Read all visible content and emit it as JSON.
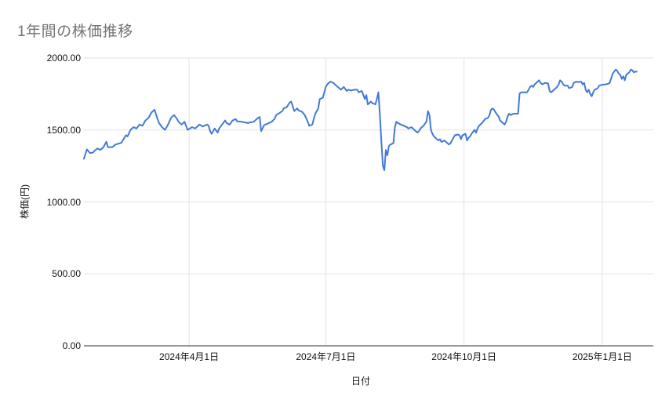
{
  "colors": {
    "line": "#4379d8",
    "gridline": "#e3e3e3",
    "axis_line": "#333333",
    "title_text": "#757575",
    "tick_text": "#111111",
    "background": "#ffffff"
  },
  "chart_data": {
    "type": "line",
    "title": "1年間の株価推移",
    "xlabel": "日付",
    "ylabel": "株価(円)",
    "ylim": [
      0,
      2000
    ],
    "grid": "on",
    "legend": "none",
    "y_ticks": [
      {
        "label": "0.00",
        "value": 0
      },
      {
        "label": "500.00",
        "value": 500
      },
      {
        "label": "1000.00",
        "value": 1000
      },
      {
        "label": "1500.00",
        "value": 1500
      },
      {
        "label": "2000.00",
        "value": 2000
      }
    ],
    "x_ticks": [
      {
        "label": "2024年4月1日",
        "day": 70
      },
      {
        "label": "2024年7月1日",
        "day": 161
      },
      {
        "label": "2024年10月1日",
        "day": 253
      },
      {
        "label": "2025年1月1日",
        "day": 345
      }
    ],
    "x_range_days": [
      0,
      379
    ],
    "series": [
      {
        "points": [
          [
            0,
            1300
          ],
          [
            2,
            1365
          ],
          [
            4,
            1340
          ],
          [
            6,
            1343
          ],
          [
            7,
            1355
          ],
          [
            9,
            1371
          ],
          [
            11,
            1362
          ],
          [
            13,
            1381
          ],
          [
            15,
            1418
          ],
          [
            16,
            1381
          ],
          [
            19,
            1381
          ],
          [
            21,
            1399
          ],
          [
            23,
            1405
          ],
          [
            25,
            1412
          ],
          [
            28,
            1464
          ],
          [
            29,
            1455
          ],
          [
            31,
            1501
          ],
          [
            33,
            1520
          ],
          [
            35,
            1510
          ],
          [
            37,
            1538
          ],
          [
            39,
            1529
          ],
          [
            41,
            1566
          ],
          [
            43,
            1585
          ],
          [
            45,
            1622
          ],
          [
            47,
            1641
          ],
          [
            49,
            1576
          ],
          [
            50,
            1548
          ],
          [
            52,
            1520
          ],
          [
            54,
            1501
          ],
          [
            56,
            1538
          ],
          [
            58,
            1585
          ],
          [
            60,
            1604
          ],
          [
            62,
            1576
          ],
          [
            63,
            1557
          ],
          [
            65,
            1538
          ],
          [
            67,
            1557
          ],
          [
            69,
            1501
          ],
          [
            72,
            1520
          ],
          [
            74,
            1510
          ],
          [
            75,
            1520
          ],
          [
            77,
            1538
          ],
          [
            79,
            1524
          ],
          [
            82,
            1538
          ],
          [
            83,
            1529
          ],
          [
            84,
            1492
          ],
          [
            85,
            1473
          ],
          [
            87,
            1510
          ],
          [
            89,
            1482
          ],
          [
            90,
            1510
          ],
          [
            92,
            1538
          ],
          [
            94,
            1566
          ],
          [
            95,
            1548
          ],
          [
            97,
            1538
          ],
          [
            99,
            1566
          ],
          [
            101,
            1576
          ],
          [
            102,
            1560
          ],
          [
            105,
            1557
          ],
          [
            108,
            1551
          ],
          [
            109,
            1548
          ],
          [
            111,
            1553
          ],
          [
            113,
            1557
          ],
          [
            115,
            1576
          ],
          [
            116,
            1585
          ],
          [
            117,
            1590
          ],
          [
            118,
            1492
          ],
          [
            120,
            1535
          ],
          [
            122,
            1542
          ],
          [
            123,
            1548
          ],
          [
            125,
            1557
          ],
          [
            127,
            1579
          ],
          [
            128,
            1604
          ],
          [
            130,
            1617
          ],
          [
            132,
            1631
          ],
          [
            133,
            1650
          ],
          [
            135,
            1659
          ],
          [
            137,
            1691
          ],
          [
            138,
            1697
          ],
          [
            140,
            1631
          ],
          [
            142,
            1650
          ],
          [
            143,
            1635
          ],
          [
            145,
            1628
          ],
          [
            147,
            1604
          ],
          [
            149,
            1557
          ],
          [
            150,
            1529
          ],
          [
            152,
            1538
          ],
          [
            154,
            1613
          ],
          [
            156,
            1650
          ],
          [
            157,
            1715
          ],
          [
            159,
            1724
          ],
          [
            161,
            1799
          ],
          [
            162,
            1817
          ],
          [
            164,
            1836
          ],
          [
            166,
            1827
          ],
          [
            168,
            1808
          ],
          [
            169,
            1799
          ],
          [
            171,
            1780
          ],
          [
            173,
            1799
          ],
          [
            175,
            1771
          ],
          [
            176,
            1780
          ],
          [
            178,
            1775
          ],
          [
            180,
            1780
          ],
          [
            182,
            1780
          ],
          [
            183,
            1762
          ],
          [
            185,
            1771
          ],
          [
            187,
            1715
          ],
          [
            188,
            1743
          ],
          [
            189,
            1678
          ],
          [
            191,
            1697
          ],
          [
            192,
            1687
          ],
          [
            194,
            1678
          ],
          [
            195,
            1715
          ],
          [
            196,
            1762
          ],
          [
            197,
            1604
          ],
          [
            198,
            1417
          ],
          [
            199,
            1250
          ],
          [
            200,
            1220
          ],
          [
            201,
            1361
          ],
          [
            202,
            1324
          ],
          [
            203,
            1389
          ],
          [
            204,
            1399
          ],
          [
            206,
            1408
          ],
          [
            207,
            1520
          ],
          [
            208,
            1557
          ],
          [
            209,
            1548
          ],
          [
            211,
            1538
          ],
          [
            213,
            1529
          ],
          [
            215,
            1520
          ],
          [
            216,
            1510
          ],
          [
            218,
            1520
          ],
          [
            220,
            1501
          ],
          [
            222,
            1482
          ],
          [
            223,
            1492
          ],
          [
            224,
            1510
          ],
          [
            226,
            1529
          ],
          [
            228,
            1557
          ],
          [
            229,
            1631
          ],
          [
            230,
            1604
          ],
          [
            231,
            1501
          ],
          [
            232,
            1473
          ],
          [
            233,
            1455
          ],
          [
            235,
            1436
          ],
          [
            236,
            1427
          ],
          [
            237,
            1436
          ],
          [
            238,
            1417
          ],
          [
            240,
            1427
          ],
          [
            242,
            1408
          ],
          [
            243,
            1399
          ],
          [
            244,
            1408
          ],
          [
            245,
            1427
          ],
          [
            247,
            1464
          ],
          [
            249,
            1468
          ],
          [
            250,
            1464
          ],
          [
            251,
            1436
          ],
          [
            252,
            1464
          ],
          [
            254,
            1473
          ],
          [
            255,
            1427
          ],
          [
            256,
            1445
          ],
          [
            257,
            1455
          ],
          [
            258,
            1473
          ],
          [
            260,
            1501
          ],
          [
            261,
            1482
          ],
          [
            262,
            1510
          ],
          [
            263,
            1529
          ],
          [
            265,
            1548
          ],
          [
            267,
            1576
          ],
          [
            269,
            1585
          ],
          [
            270,
            1604
          ],
          [
            271,
            1641
          ],
          [
            272,
            1650
          ],
          [
            273,
            1641
          ],
          [
            274,
            1622
          ],
          [
            276,
            1594
          ],
          [
            277,
            1566
          ],
          [
            279,
            1548
          ],
          [
            280,
            1538
          ],
          [
            281,
            1557
          ],
          [
            282,
            1594
          ],
          [
            283,
            1613
          ],
          [
            284,
            1604
          ],
          [
            286,
            1613
          ],
          [
            288,
            1613
          ],
          [
            289,
            1613
          ],
          [
            290,
            1752
          ],
          [
            291,
            1762
          ],
          [
            293,
            1762
          ],
          [
            295,
            1762
          ],
          [
            296,
            1780
          ],
          [
            297,
            1799
          ],
          [
            298,
            1808
          ],
          [
            299,
            1799
          ],
          [
            300,
            1817
          ],
          [
            302,
            1836
          ],
          [
            303,
            1845
          ],
          [
            304,
            1827
          ],
          [
            305,
            1817
          ],
          [
            307,
            1827
          ],
          [
            309,
            1823
          ],
          [
            310,
            1771
          ],
          [
            311,
            1762
          ],
          [
            313,
            1780
          ],
          [
            315,
            1799
          ],
          [
            316,
            1817
          ],
          [
            317,
            1845
          ],
          [
            318,
            1836
          ],
          [
            319,
            1817
          ],
          [
            320,
            1808
          ],
          [
            322,
            1808
          ],
          [
            323,
            1790
          ],
          [
            325,
            1799
          ],
          [
            326,
            1827
          ],
          [
            328,
            1836
          ],
          [
            329,
            1832
          ],
          [
            331,
            1836
          ],
          [
            332,
            1817
          ],
          [
            333,
            1827
          ],
          [
            334,
            1780
          ],
          [
            335,
            1762
          ],
          [
            336,
            1780
          ],
          [
            337,
            1752
          ],
          [
            338,
            1734
          ],
          [
            339,
            1762
          ],
          [
            340,
            1780
          ],
          [
            342,
            1790
          ],
          [
            343,
            1808
          ],
          [
            345,
            1814
          ],
          [
            347,
            1817
          ],
          [
            349,
            1821
          ],
          [
            350,
            1827
          ],
          [
            352,
            1892
          ],
          [
            354,
            1920
          ],
          [
            355,
            1911
          ],
          [
            356,
            1892
          ],
          [
            357,
            1883
          ],
          [
            358,
            1855
          ],
          [
            359,
            1873
          ],
          [
            360,
            1845
          ],
          [
            361,
            1883
          ],
          [
            362,
            1892
          ],
          [
            363,
            1901
          ],
          [
            364,
            1920
          ],
          [
            365,
            1915
          ],
          [
            366,
            1901
          ],
          [
            367,
            1906
          ],
          [
            368,
            1905
          ]
        ]
      }
    ]
  }
}
